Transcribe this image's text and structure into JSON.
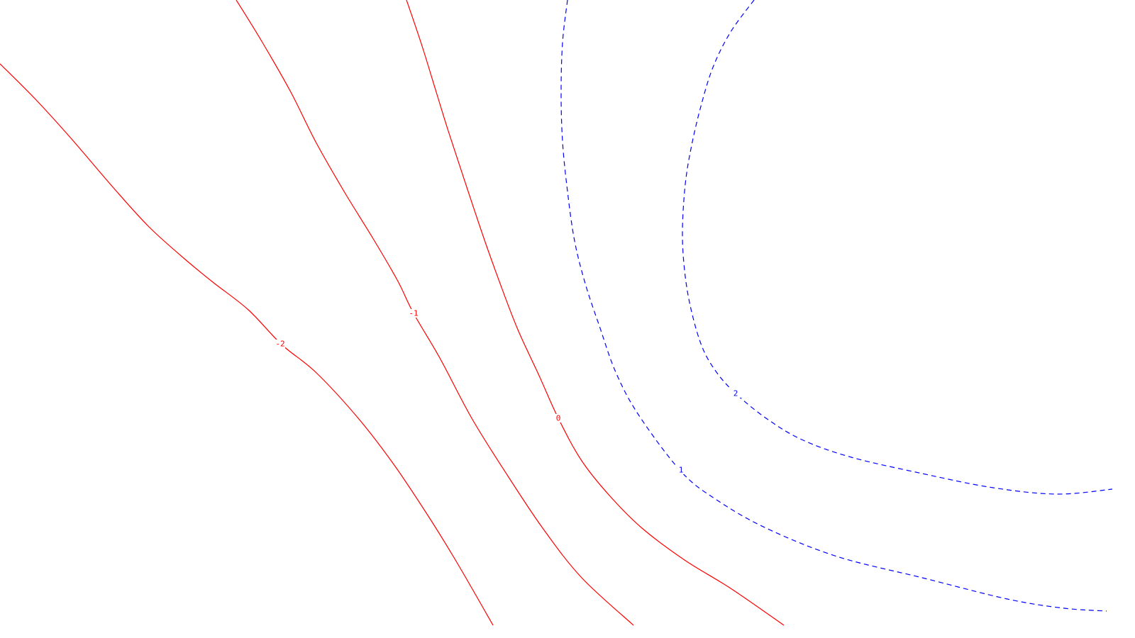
{
  "chart_data": {
    "type": "contour",
    "contours": [
      {
        "level": -2,
        "label": "-2",
        "color": "#ff0000",
        "style": "solid",
        "points": [
          [
            0,
            90
          ],
          [
            50,
            140
          ],
          [
            100,
            195
          ],
          [
            160,
            265
          ],
          [
            210,
            320
          ],
          [
            260,
            365
          ],
          [
            300,
            398
          ],
          [
            350,
            437
          ],
          [
            397,
            486
          ],
          [
            445,
            525
          ],
          [
            505,
            590
          ],
          [
            555,
            655
          ],
          [
            605,
            730
          ],
          [
            645,
            795
          ],
          [
            695,
            882
          ]
        ]
      },
      {
        "level": -1,
        "label": "-1",
        "color": "#ff0000",
        "style": "solid",
        "points": [
          [
            333,
            0
          ],
          [
            370,
            60
          ],
          [
            410,
            130
          ],
          [
            445,
            200
          ],
          [
            485,
            270
          ],
          [
            525,
            335
          ],
          [
            560,
            395
          ],
          [
            583,
            442
          ],
          [
            620,
            505
          ],
          [
            665,
            590
          ],
          [
            715,
            670
          ],
          [
            765,
            745
          ],
          [
            820,
            815
          ],
          [
            893,
            882
          ]
        ]
      },
      {
        "level": 0,
        "label": "0",
        "color": "#ff0000",
        "style": "solid",
        "points": [
          [
            573,
            0
          ],
          [
            595,
            65
          ],
          [
            615,
            130
          ],
          [
            632,
            185
          ],
          [
            655,
            255
          ],
          [
            680,
            330
          ],
          [
            705,
            400
          ],
          [
            730,
            465
          ],
          [
            760,
            530
          ],
          [
            787,
            590
          ],
          [
            820,
            650
          ],
          [
            860,
            700
          ],
          [
            905,
            745
          ],
          [
            965,
            790
          ],
          [
            1030,
            830
          ],
          [
            1105,
            882
          ]
        ]
      },
      {
        "level": 1,
        "label": "1",
        "color": "#0000ff",
        "style": "dashed",
        "points": [
          [
            800,
            0
          ],
          [
            793,
            60
          ],
          [
            791,
            130
          ],
          [
            793,
            200
          ],
          [
            800,
            270
          ],
          [
            810,
            340
          ],
          [
            825,
            400
          ],
          [
            845,
            460
          ],
          [
            868,
            525
          ],
          [
            900,
            585
          ],
          [
            960,
            665
          ],
          [
            1010,
            705
          ],
          [
            1080,
            745
          ],
          [
            1180,
            785
          ],
          [
            1300,
            815
          ],
          [
            1420,
            845
          ],
          [
            1500,
            858
          ],
          [
            1560,
            862
          ]
        ]
      },
      {
        "level": 2,
        "label": "2",
        "color": "#0000ff",
        "style": "dashed",
        "points": [
          [
            1063,
            0
          ],
          [
            1030,
            45
          ],
          [
            1005,
            95
          ],
          [
            988,
            150
          ],
          [
            975,
            205
          ],
          [
            966,
            260
          ],
          [
            962,
            330
          ],
          [
            966,
            390
          ],
          [
            975,
            440
          ],
          [
            990,
            490
          ],
          [
            1010,
            525
          ],
          [
            1037,
            555
          ],
          [
            1080,
            590
          ],
          [
            1130,
            620
          ],
          [
            1200,
            645
          ],
          [
            1300,
            668
          ],
          [
            1400,
            688
          ],
          [
            1490,
            697
          ],
          [
            1568,
            690
          ]
        ]
      }
    ]
  }
}
